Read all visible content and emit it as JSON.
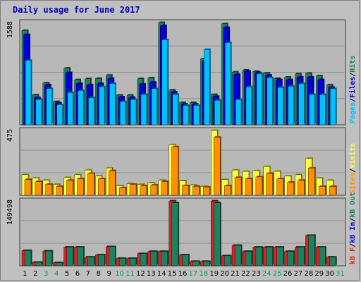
{
  "title": "Daily usage for June 2017",
  "colors": {
    "background": "#c0c0c0",
    "plot_bg": "#b8b8b8",
    "hits": "#1f8060",
    "files": "#0000d8",
    "pages": "#00c0ff",
    "visits": "#ffff40",
    "sites": "#ff9000",
    "kb_in": "#1f8060",
    "kb_out": "#e02020",
    "title": "#0000c0",
    "weekend_label": "#00a040"
  },
  "chart_data": [
    {
      "type": "bar",
      "panel": "hits-files-pages",
      "ymax_label": "1588",
      "ylim": [
        0,
        1588
      ],
      "legend": [
        "Pages",
        "Files",
        "Hits"
      ],
      "categories": [
        "1",
        "2",
        "3",
        "4",
        "5",
        "6",
        "7",
        "8",
        "9",
        "10",
        "11",
        "12",
        "13",
        "14",
        "15",
        "16",
        "17",
        "18",
        "19",
        "20",
        "21",
        "22",
        "23",
        "24",
        "25",
        "26",
        "27",
        "28",
        "29",
        "30"
      ],
      "series": [
        {
          "name": "Hits",
          "values": [
            1465,
            465,
            650,
            360,
            880,
            700,
            715,
            720,
            770,
            460,
            460,
            715,
            730,
            1588,
            540,
            345,
            345,
            1025,
            470,
            1568,
            820,
            850,
            830,
            805,
            720,
            740,
            790,
            800,
            760,
            620
          ]
        },
        {
          "name": "Files",
          "values": [
            1400,
            420,
            620,
            340,
            810,
            640,
            620,
            640,
            720,
            430,
            425,
            630,
            660,
            1540,
            510,
            320,
            320,
            990,
            440,
            1510,
            780,
            830,
            810,
            770,
            700,
            700,
            740,
            740,
            700,
            580
          ]
        },
        {
          "name": "Pages",
          "values": [
            1000,
            390,
            560,
            310,
            500,
            530,
            420,
            590,
            640,
            360,
            390,
            470,
            560,
            1320,
            470,
            300,
            300,
            1170,
            380,
            1275,
            390,
            590,
            790,
            730,
            580,
            600,
            640,
            470,
            470,
            560
          ]
        }
      ]
    },
    {
      "type": "bar",
      "panel": "visits-sites",
      "ymax_label": "475",
      "ylim": [
        0,
        475
      ],
      "legend": [
        "Sites",
        "Visits"
      ],
      "categories": [
        "1",
        "2",
        "3",
        "4",
        "5",
        "6",
        "7",
        "8",
        "9",
        "10",
        "11",
        "12",
        "13",
        "14",
        "15",
        "16",
        "17",
        "18",
        "19",
        "20",
        "21",
        "22",
        "23",
        "24",
        "25",
        "26",
        "27",
        "28",
        "29",
        "30"
      ],
      "series": [
        {
          "name": "Visits",
          "values": [
            150,
            125,
            110,
            80,
            130,
            150,
            185,
            140,
            200,
            70,
            85,
            80,
            90,
            110,
            370,
            105,
            75,
            65,
            475,
            115,
            185,
            175,
            180,
            210,
            175,
            140,
            150,
            270,
            125,
            110
          ]
        },
        {
          "name": "Sites",
          "values": [
            115,
            100,
            80,
            65,
            110,
            120,
            160,
            120,
            180,
            55,
            80,
            70,
            75,
            100,
            355,
            70,
            65,
            60,
            425,
            70,
            130,
            120,
            135,
            160,
            120,
            95,
            110,
            200,
            65,
            65
          ]
        }
      ]
    },
    {
      "type": "bar",
      "panel": "kbytes",
      "ymax_label": "149498",
      "ylim": [
        0,
        149498
      ],
      "legend": [
        "kB F",
        "kB In",
        "kB Out"
      ],
      "categories": [
        "1",
        "2",
        "3",
        "4",
        "5",
        "6",
        "7",
        "8",
        "9",
        "10",
        "11",
        "12",
        "13",
        "14",
        "15",
        "16",
        "17",
        "18",
        "19",
        "20",
        "21",
        "22",
        "23",
        "24",
        "25",
        "26",
        "27",
        "28",
        "29",
        "30",
        "31"
      ],
      "series": [
        {
          "name": "kB Out",
          "values": [
            35000,
            8000,
            34000,
            7000,
            43000,
            43000,
            20000,
            25000,
            44000,
            17000,
            17000,
            28000,
            33000,
            33000,
            149498,
            25000,
            10000,
            10000,
            149498,
            23000,
            47000,
            33000,
            43000,
            43000,
            43000,
            33000,
            43000,
            70000,
            43000,
            20000,
            0
          ]
        },
        {
          "name": "kB In",
          "values": [
            35000,
            8000,
            34000,
            7000,
            43000,
            43000,
            20000,
            25000,
            44000,
            17000,
            17000,
            28000,
            33000,
            33000,
            145000,
            25000,
            10000,
            10000,
            145000,
            23000,
            47000,
            33000,
            43000,
            43000,
            43000,
            33000,
            43000,
            70000,
            43000,
            20000,
            0
          ]
        }
      ],
      "x_labels": [
        "1",
        "2",
        "3",
        "4",
        "5",
        "6",
        "7",
        "8",
        "9",
        "10",
        "11",
        "12",
        "13",
        "14",
        "15",
        "16",
        "17",
        "18",
        "19",
        "20",
        "21",
        "22",
        "23",
        "24",
        "25",
        "26",
        "27",
        "28",
        "29",
        "30",
        "31"
      ],
      "weekend_days": [
        "3",
        "4",
        "10",
        "11",
        "17",
        "18",
        "24",
        "25",
        "31"
      ]
    }
  ]
}
